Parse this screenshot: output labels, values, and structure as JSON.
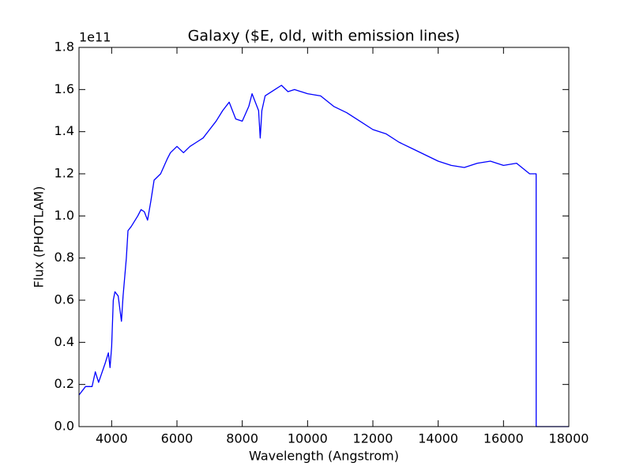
{
  "chart_data": {
    "type": "line",
    "title": "Galaxy ($E, old, with emission lines)",
    "x_label": "Wavelength (Angstrom)",
    "y_label": "Flux (PHOTLAM)",
    "y_offset_label": "1e11",
    "x": [
      3000,
      3200,
      3400,
      3500,
      3600,
      3800,
      3900,
      3950,
      4000,
      4050,
      4100,
      4200,
      4300,
      4350,
      4450,
      4500,
      4600,
      4800,
      4900,
      5000,
      5100,
      5200,
      5300,
      5500,
      5700,
      5800,
      6000,
      6200,
      6400,
      6600,
      6800,
      7000,
      7200,
      7400,
      7600,
      7800,
      8000,
      8200,
      8300,
      8500,
      8550,
      8600,
      8700,
      9000,
      9200,
      9400,
      9600,
      10000,
      10400,
      10800,
      11200,
      11600,
      12000,
      12400,
      12800,
      13200,
      13600,
      14000,
      14400,
      14800,
      15200,
      15600,
      16000,
      16400,
      16800,
      17000,
      17001,
      18000
    ],
    "series": [
      {
        "name": "Flux",
        "color": "#0000ff",
        "values": [
          0.15,
          0.19,
          0.19,
          0.26,
          0.21,
          0.3,
          0.35,
          0.28,
          0.38,
          0.6,
          0.64,
          0.62,
          0.5,
          0.62,
          0.8,
          0.93,
          0.95,
          1.0,
          1.03,
          1.02,
          0.98,
          1.07,
          1.17,
          1.2,
          1.27,
          1.3,
          1.33,
          1.3,
          1.33,
          1.35,
          1.37,
          1.41,
          1.45,
          1.5,
          1.54,
          1.46,
          1.45,
          1.52,
          1.58,
          1.5,
          1.37,
          1.5,
          1.57,
          1.6,
          1.62,
          1.59,
          1.6,
          1.58,
          1.57,
          1.52,
          1.49,
          1.45,
          1.41,
          1.39,
          1.35,
          1.32,
          1.29,
          1.26,
          1.24,
          1.23,
          1.25,
          1.26,
          1.24,
          1.25,
          1.2,
          1.2,
          0,
          0
        ]
      }
    ],
    "xlim": [
      3000,
      18000
    ],
    "ylim": [
      0,
      1.8
    ],
    "xticks": [
      4000,
      6000,
      8000,
      10000,
      12000,
      14000,
      16000,
      18000
    ],
    "yticks": [
      {
        "value": 0,
        "label": "0.0"
      },
      {
        "value": 0.2,
        "label": "0.2"
      },
      {
        "value": 0.4,
        "label": "0.4"
      },
      {
        "value": 0.6,
        "label": "0.6"
      },
      {
        "value": 0.8,
        "label": "0.8"
      },
      {
        "value": 1.0,
        "label": "1.0"
      },
      {
        "value": 1.2,
        "label": "1.2"
      },
      {
        "value": 1.4,
        "label": "1.4"
      },
      {
        "value": 1.6,
        "label": "1.6"
      },
      {
        "value": 1.8,
        "label": "1.8"
      }
    ],
    "grid": false
  }
}
